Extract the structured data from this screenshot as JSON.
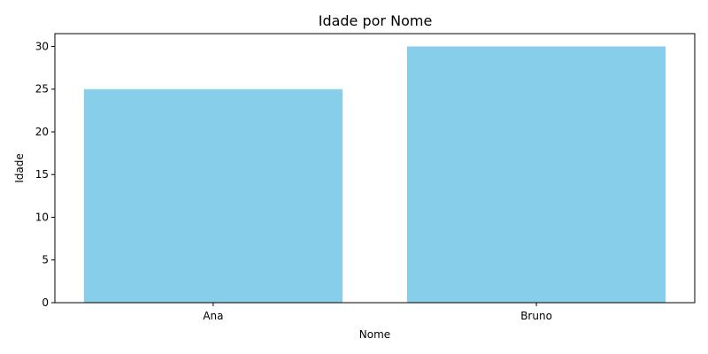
{
  "chart_data": {
    "type": "bar",
    "title": "Idade por Nome",
    "xlabel": "Nome",
    "ylabel": "Idade",
    "categories": [
      "Ana",
      "Bruno"
    ],
    "values": [
      25,
      30
    ],
    "ylim": [
      0,
      31.5
    ],
    "yticks": [
      0,
      5,
      10,
      15,
      20,
      25,
      30
    ],
    "bar_color": "#87CEEB",
    "grid": false,
    "legend": "none"
  }
}
